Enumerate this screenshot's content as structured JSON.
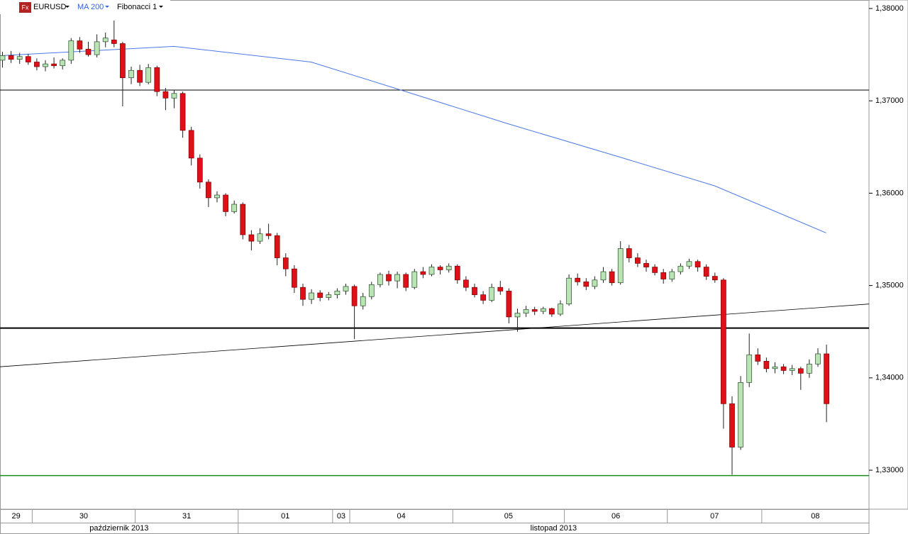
{
  "chart_data": {
    "type": "candlestick",
    "toolbar": {
      "icon": "Fx",
      "symbol": "EURUSD",
      "indicator": "MA 200",
      "tool": "Fibonacci 1"
    },
    "ylim": [
      1.32578,
      1.38092
    ],
    "yticks": [
      {
        "value": 1.33,
        "label": "1,33000"
      },
      {
        "value": 1.34,
        "label": "1,34000"
      },
      {
        "value": 1.35,
        "label": "1,35000"
      },
      {
        "value": 1.36,
        "label": "1,36000"
      },
      {
        "value": 1.37,
        "label": "1,37000"
      },
      {
        "value": 1.38,
        "label": "1,38000"
      }
    ],
    "categories": [
      "29",
      null,
      null,
      null,
      "30",
      null,
      null,
      null,
      null,
      null,
      null,
      null,
      null,
      null,
      null,
      null,
      "31",
      null,
      null,
      null,
      null,
      null,
      null,
      null,
      null,
      null,
      null,
      null,
      "01",
      null,
      null,
      null,
      null,
      null,
      null,
      null,
      null,
      null,
      null,
      "03",
      null,
      "04",
      null,
      null,
      null,
      null,
      null,
      null,
      null,
      null,
      null,
      null,
      null,
      "05",
      null,
      null,
      null,
      null,
      null,
      null,
      null,
      null,
      null,
      null,
      null,
      null,
      "06",
      null,
      null,
      null,
      null,
      null,
      null,
      null,
      null,
      null,
      null,
      null,
      "07",
      null,
      null,
      null,
      null,
      null,
      null,
      null,
      null,
      null,
      null,
      "08",
      null,
      null,
      null,
      null,
      null,
      null,
      null
    ],
    "months": [
      "październik 2013",
      null,
      null,
      null,
      null,
      null,
      null,
      null,
      null,
      null,
      null,
      null,
      null,
      null,
      null,
      null,
      null,
      null,
      null,
      null,
      null,
      null,
      null,
      null,
      null,
      null,
      null,
      null,
      "listopad 2013",
      null,
      null,
      null,
      null,
      null,
      null,
      null,
      null,
      null,
      null,
      null,
      null,
      null,
      null,
      null,
      null,
      null,
      null,
      null,
      null,
      null,
      null,
      null,
      null,
      null,
      null,
      null,
      null,
      null,
      null,
      null,
      null,
      null,
      null,
      null,
      null,
      null,
      null,
      null,
      null,
      null,
      null,
      null,
      null,
      null,
      null,
      null,
      null,
      null,
      null,
      null,
      null,
      null,
      null,
      null,
      null,
      null,
      null,
      null,
      null,
      null,
      null,
      null,
      null,
      null,
      null,
      null,
      null
    ],
    "up_color": "#b9e4b4",
    "down_color": "#e01018",
    "open": [
      1.3744,
      1.3749,
      1.3745,
      1.3748,
      1.3742,
      1.3737,
      1.374,
      1.3738,
      1.3744,
      1.3765,
      1.3756,
      1.375,
      1.3764,
      1.3766,
      1.3762,
      1.3725,
      1.3733,
      1.372,
      1.3736,
      1.371,
      1.3703,
      1.3708,
      1.3668,
      1.3638,
      1.3612,
      1.3595,
      1.3598,
      1.358,
      1.3588,
      1.3555,
      1.3548,
      1.3556,
      1.3554,
      1.353,
      1.3518,
      1.3498,
      1.3485,
      1.3492,
      1.3487,
      1.349,
      1.3494,
      1.3499,
      1.3478,
      1.3488,
      1.3501,
      1.3512,
      1.3505,
      1.3512,
      1.3498,
      1.3515,
      1.3512,
      1.352,
      1.3517,
      1.3521,
      1.3506,
      1.3498,
      1.349,
      1.3484,
      1.3498,
      1.3494,
      1.3466,
      1.347,
      1.3474,
      1.3472,
      1.3475,
      1.3469,
      1.348,
      1.3508,
      1.3504,
      1.3499,
      1.3506,
      1.3515,
      1.3503,
      1.354,
      1.353,
      1.3524,
      1.352,
      1.3514,
      1.3507,
      1.3515,
      1.3521,
      1.3526,
      1.352,
      1.351,
      1.3506,
      1.3372,
      1.3325,
      1.3395,
      1.3425,
      1.3418,
      1.341,
      1.3412,
      1.3408,
      1.341,
      1.3405,
      1.3415,
      1.3426
    ],
    "high": [
      1.3753,
      1.3754,
      1.3752,
      1.3751,
      1.3746,
      1.3744,
      1.3747,
      1.3746,
      1.3768,
      1.3769,
      1.3764,
      1.3772,
      1.3774,
      1.3787,
      1.3764,
      1.3737,
      1.3739,
      1.374,
      1.3738,
      1.3714,
      1.3712,
      1.371,
      1.3672,
      1.3642,
      1.3615,
      1.3602,
      1.36,
      1.3592,
      1.359,
      1.356,
      1.3562,
      1.3567,
      1.3557,
      1.3535,
      1.3522,
      1.3502,
      1.3496,
      1.3495,
      1.3493,
      1.3497,
      1.3502,
      1.3501,
      1.3492,
      1.3504,
      1.3514,
      1.3516,
      1.3515,
      1.3514,
      1.3518,
      1.352,
      1.3523,
      1.3522,
      1.3524,
      1.3523,
      1.351,
      1.3502,
      1.3494,
      1.3502,
      1.3505,
      1.3497,
      1.3475,
      1.3478,
      1.3477,
      1.3477,
      1.3476,
      1.3484,
      1.3512,
      1.3513,
      1.3508,
      1.351,
      1.352,
      1.3518,
      1.3548,
      1.3544,
      1.3535,
      1.3528,
      1.3523,
      1.3518,
      1.3518,
      1.3524,
      1.3529,
      1.3528,
      1.3523,
      1.3514,
      1.3508,
      1.338,
      1.3402,
      1.3448,
      1.3432,
      1.3422,
      1.3417,
      1.3415,
      1.3414,
      1.3412,
      1.342,
      1.3432,
      1.3436
    ],
    "low": [
      1.3736,
      1.3741,
      1.374,
      1.3739,
      1.3733,
      1.3732,
      1.3735,
      1.3734,
      1.374,
      1.3752,
      1.3748,
      1.3747,
      1.3758,
      1.3758,
      1.3694,
      1.3718,
      1.3716,
      1.3718,
      1.3705,
      1.369,
      1.3692,
      1.366,
      1.363,
      1.3605,
      1.3585,
      1.359,
      1.3575,
      1.3578,
      1.355,
      1.3538,
      1.3545,
      1.355,
      1.3522,
      1.351,
      1.3492,
      1.3478,
      1.348,
      1.3483,
      1.3484,
      1.3486,
      1.349,
      1.3442,
      1.3474,
      1.3485,
      1.3498,
      1.35,
      1.3497,
      1.3494,
      1.3496,
      1.3508,
      1.351,
      1.3512,
      1.3514,
      1.3502,
      1.3494,
      1.3487,
      1.348,
      1.3482,
      1.349,
      1.3459,
      1.345,
      1.3466,
      1.3468,
      1.3469,
      1.3466,
      1.3467,
      1.3478,
      1.35,
      1.3495,
      1.3496,
      1.3503,
      1.35,
      1.3501,
      1.3525,
      1.352,
      1.3515,
      1.3511,
      1.3502,
      1.3504,
      1.3512,
      1.3518,
      1.3515,
      1.3506,
      1.3503,
      1.3345,
      1.3295,
      1.3322,
      1.339,
      1.3414,
      1.3406,
      1.3405,
      1.3404,
      1.3403,
      1.3387,
      1.34,
      1.3412,
      1.3352
    ],
    "close": [
      1.3749,
      1.3745,
      1.3748,
      1.3742,
      1.3737,
      1.374,
      1.3738,
      1.3744,
      1.3765,
      1.3756,
      1.375,
      1.3764,
      1.3768,
      1.3762,
      1.3725,
      1.3733,
      1.372,
      1.3736,
      1.371,
      1.3703,
      1.3708,
      1.3668,
      1.3638,
      1.3612,
      1.3595,
      1.3598,
      1.358,
      1.3588,
      1.3555,
      1.3548,
      1.3556,
      1.3554,
      1.353,
      1.3518,
      1.3498,
      1.3485,
      1.3492,
      1.3487,
      1.349,
      1.3494,
      1.3499,
      1.3478,
      1.3488,
      1.3501,
      1.3512,
      1.3505,
      1.3512,
      1.3498,
      1.3515,
      1.3512,
      1.352,
      1.3517,
      1.3521,
      1.3506,
      1.3498,
      1.349,
      1.3484,
      1.3498,
      1.3494,
      1.3466,
      1.347,
      1.3474,
      1.3472,
      1.3475,
      1.3469,
      1.348,
      1.3508,
      1.3504,
      1.3499,
      1.3506,
      1.3515,
      1.3503,
      1.354,
      1.353,
      1.3524,
      1.352,
      1.3514,
      1.3507,
      1.3515,
      1.3521,
      1.3526,
      1.352,
      1.351,
      1.3506,
      1.3372,
      1.3325,
      1.3395,
      1.3425,
      1.3418,
      1.341,
      1.3412,
      1.3408,
      1.341,
      1.3405,
      1.3415,
      1.3426,
      1.3372
    ],
    "ma": {
      "color": "#4a78e8",
      "x": [
        0,
        20,
        36,
        46,
        59,
        72,
        83,
        96
      ],
      "values": [
        1.3749,
        1.3759,
        1.3742,
        1.3713,
        1.3675,
        1.3639,
        1.3608,
        1.3557
      ]
    },
    "levels": [
      {
        "value": 1.37117,
        "color": "#000000",
        "width": 1
      },
      {
        "value": 1.34539,
        "color": "#000000",
        "width": 2
      },
      {
        "value": 1.32942,
        "color": "#1a8a1a",
        "width": 1.5
      }
    ],
    "trendline": {
      "color": "#000000",
      "x": [
        -0.25,
        101
      ],
      "values": [
        1.3412,
        1.348
      ]
    }
  }
}
